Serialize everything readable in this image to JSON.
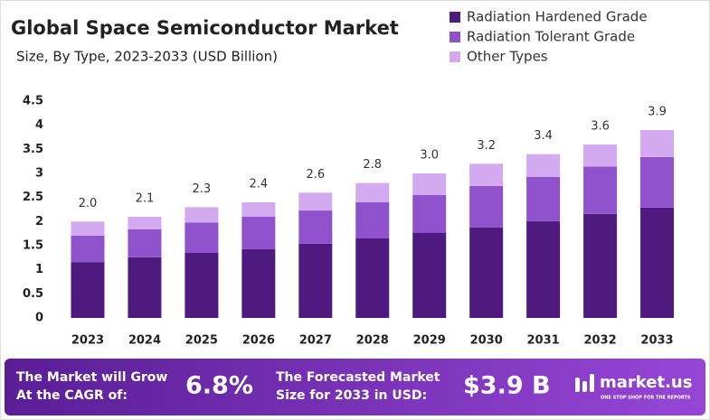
{
  "chart_data": {
    "type": "stacked_bar",
    "title": "Global Space Semiconductor Market",
    "subtitle": "Size, By Type, 2023-2033 (USD Billion)",
    "categories": [
      "2023",
      "2024",
      "2025",
      "2026",
      "2027",
      "2028",
      "2029",
      "2030",
      "2031",
      "2032",
      "2033"
    ],
    "series": [
      {
        "name": "Radiation Hardened Grade",
        "color": "#4e1a7f",
        "values": [
          1.16,
          1.26,
          1.35,
          1.43,
          1.54,
          1.65,
          1.77,
          1.88,
          2.01,
          2.16,
          2.29
        ]
      },
      {
        "name": "Radiation Tolerant Grade",
        "color": "#8f52cc",
        "values": [
          0.55,
          0.58,
          0.63,
          0.67,
          0.69,
          0.75,
          0.78,
          0.86,
          0.92,
          0.98,
          1.05
        ]
      },
      {
        "name": "Other Types",
        "color": "#d3a9ef",
        "values": [
          0.29,
          0.26,
          0.32,
          0.3,
          0.37,
          0.4,
          0.45,
          0.46,
          0.47,
          0.46,
          0.56
        ]
      }
    ],
    "total_labels": [
      "2.0",
      "2.1",
      "2.3",
      "2.4",
      "2.6",
      "2.8",
      "3.0",
      "3.2",
      "3.4",
      "3.6",
      "3.9"
    ],
    "ylim": [
      0,
      4.5
    ],
    "yticks": [
      0,
      0.5,
      1,
      1.5,
      2,
      2.5,
      3,
      3.5,
      4,
      4.5
    ],
    "grid": false,
    "legend": "top-right"
  },
  "footer": {
    "cagr_text_1": "The Market will Grow",
    "cagr_text_2": "At the CAGR of:",
    "cagr_value": "6.8%",
    "forecast_text_1": "The Forecasted Market",
    "forecast_text_2": "Size for 2033 in USD:",
    "forecast_value": "$3.9 B",
    "brand": "market.us",
    "tagline": "ONE STOP SHOP FOR THE REPORTS"
  }
}
